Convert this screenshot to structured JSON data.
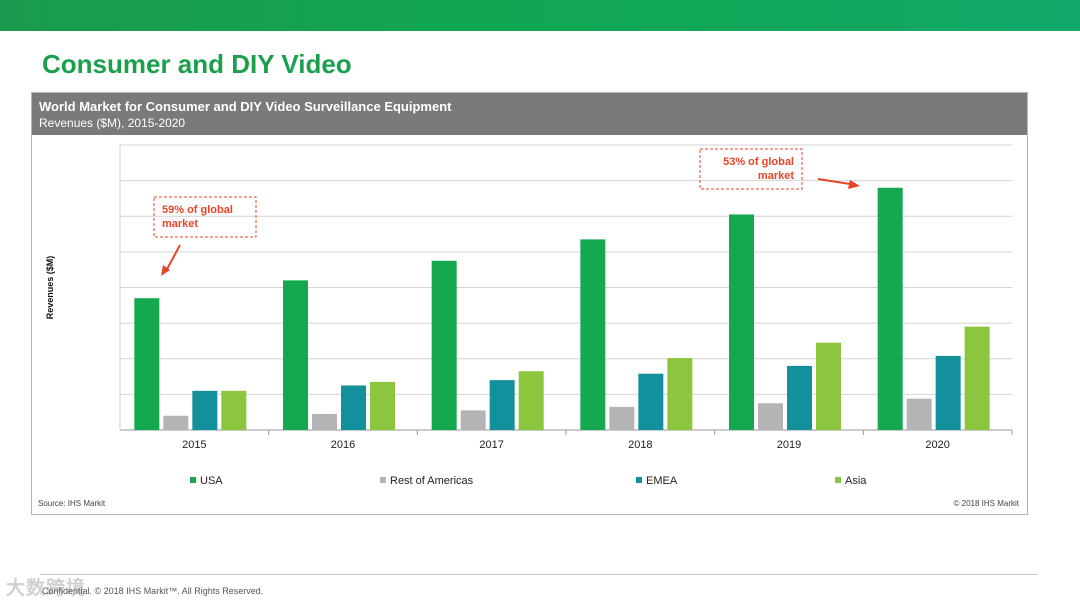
{
  "slide": {
    "title": "Consumer and DIY Video",
    "footer": "Confidential. © 2018 IHS Markit™. All Rights Reserved.",
    "watermark": "大数跨境"
  },
  "chart_header": {
    "title": "World Market for Consumer and DIY Video Surveillance Equipment",
    "subtitle": "Revenues ($M), 2015-2020"
  },
  "notes": {
    "source": "Source: IHS Markit",
    "copyright": "© 2018 IHS Markit"
  },
  "colors": {
    "USA": "#14a94e",
    "Rest of Americas": "#b4b4b6",
    "EMEA": "#12919c",
    "Asia": "#8cc63f",
    "annotation": "#e8442a",
    "grid": "#d4d4d4",
    "header_bg": "#7a7a7a"
  },
  "chart_data": {
    "type": "bar",
    "title": "World Market for Consumer and DIY Video Surveillance Equipment",
    "subtitle": "Revenues ($M), 2015-2020",
    "ylabel": "Revenues ($M)",
    "xlabel": "",
    "categories": [
      "2015",
      "2016",
      "2017",
      "2018",
      "2019",
      "2020"
    ],
    "ylim": [
      0,
      8
    ],
    "grid": true,
    "legend": "bottom",
    "series": [
      {
        "name": "USA",
        "values": [
          3.7,
          4.2,
          4.75,
          5.35,
          6.05,
          6.8
        ]
      },
      {
        "name": "Rest of Americas",
        "values": [
          0.4,
          0.45,
          0.55,
          0.65,
          0.75,
          0.88
        ]
      },
      {
        "name": "EMEA",
        "values": [
          1.1,
          1.25,
          1.4,
          1.58,
          1.8,
          2.08
        ]
      },
      {
        "name": "Asia",
        "values": [
          1.1,
          1.35,
          1.65,
          2.02,
          2.45,
          2.9
        ]
      }
    ],
    "annotations": [
      {
        "text_line1": "59% of global",
        "text_line2": "market",
        "category": "2015"
      },
      {
        "text_line1": "53% of global",
        "text_line2": "market",
        "category": "2020"
      }
    ]
  }
}
